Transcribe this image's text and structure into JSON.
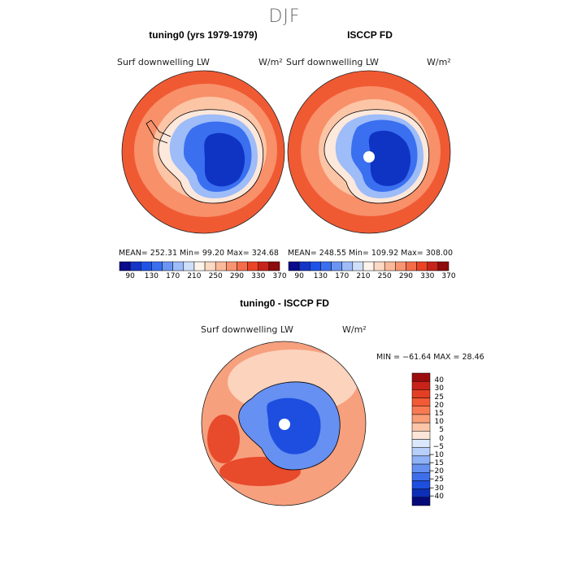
{
  "figure": {
    "season": "DJF"
  },
  "panels": [
    {
      "title": "tuning0 (yrs 1979-1979)",
      "variable": "Surf downwelling LW",
      "units": "W/m²",
      "stats": "MEAN= 252.31  Min=  99.20  Max= 324.68",
      "missing_pole": false
    },
    {
      "title": "ISCCP FD",
      "variable": "Surf downwelling LW",
      "units": "W/m²",
      "stats": "MEAN= 248.55  Min= 109.92  Max= 308.00",
      "missing_pole": true
    },
    {
      "title": "tuning0 - ISCCP FD",
      "variable": "Surf downwelling LW",
      "units": "W/m²",
      "stats": "MIN = −61.64  MAX =  28.46",
      "missing_pole": true
    }
  ],
  "colorbar_top": {
    "labels": [
      "90",
      "130",
      "170",
      "210",
      "250",
      "290",
      "330",
      "370"
    ],
    "colors": [
      "#0b0b8c",
      "#1535c8",
      "#1f52e6",
      "#3a6ff0",
      "#6a95f4",
      "#9dbcf8",
      "#cfdffb",
      "#fdf3ea",
      "#fcd9c3",
      "#fbb99a",
      "#f89470",
      "#f46c4a",
      "#ea4326",
      "#c6241a",
      "#8e0c0c"
    ]
  },
  "colorbar_diff": {
    "labels": [
      "40",
      "30",
      "25",
      "20",
      "15",
      "10",
      "5",
      "0",
      "−5",
      "−10",
      "−15",
      "−20",
      "−25",
      "−30",
      "−40"
    ],
    "colors": [
      "#9b0d0d",
      "#c9221a",
      "#e43f24",
      "#f25a35",
      "#f77a52",
      "#fa9e78",
      "#fcc5a8",
      "#fde6d8",
      "#dbe8fb",
      "#b7cffa",
      "#8fb2f6",
      "#6690f1",
      "#3f6eeb",
      "#1e4edf",
      "#0d2fb8",
      "#050a7a"
    ]
  },
  "map_colors": {
    "ocean_outer": "#f05a33",
    "ocean_mid": "#f8906a",
    "ocean_inner": "#fcc5a6",
    "coast_band": "#fde8dc",
    "land_edge": "#9dbcf8",
    "land_mid": "#3a6ff0",
    "land_core": "#0f34c4",
    "diff_ocean": "#f7a07e",
    "diff_ocean_light": "#fcd3bd",
    "diff_ocean_dark": "#e84a2c",
    "diff_land": "#6690f1",
    "diff_land_core": "#1e4edf"
  }
}
